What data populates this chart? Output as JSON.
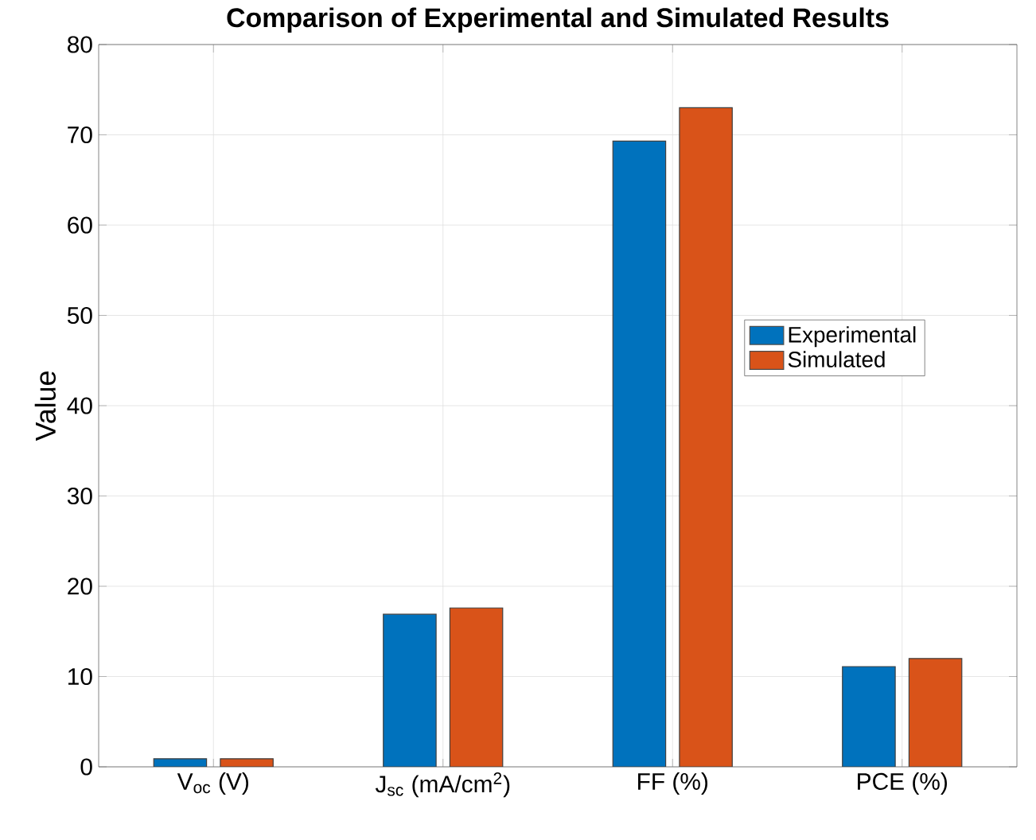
{
  "chart_data": {
    "type": "bar",
    "title": "Comparison of Experimental and Simulated Results",
    "ylabel": "Value",
    "categories": [
      "V$_{oc}$ (V)",
      "J$_{sc}$ (mA/cm$^{2}$)",
      "FF (%)",
      "PCE (%)"
    ],
    "series": [
      {
        "name": "Experimental",
        "color": "#0072bd",
        "values": [
          0.9,
          16.9,
          69.3,
          11.1
        ]
      },
      {
        "name": "Simulated",
        "color": "#d95319",
        "values": [
          0.9,
          17.6,
          73,
          12
        ]
      }
    ],
    "ylim": [
      0,
      80
    ],
    "yticks": [
      0,
      10,
      20,
      30,
      40,
      50,
      60,
      70,
      80
    ],
    "grid": true,
    "legend": "right"
  }
}
